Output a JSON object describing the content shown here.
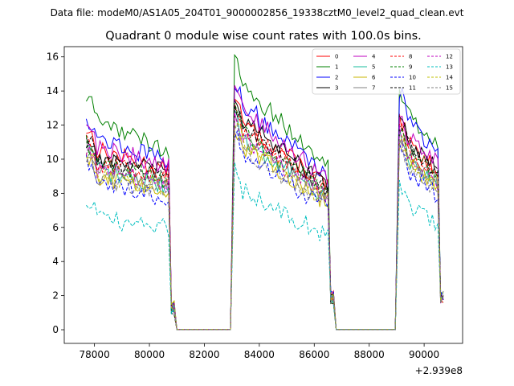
{
  "figure": {
    "suptitle": "Data file: modeM0/AS1A05_204T01_9000002856_19338cztM0_level2_quad_clean.evt",
    "offset_label": "+2.939e8"
  },
  "chart_data": {
    "type": "line",
    "title": "Quadrant 0 module wise count rates with 100.0s bins.",
    "xlabel": "",
    "ylabel": "",
    "xlim": [
      76900,
      91400
    ],
    "ylim": [
      -0.8,
      16.6
    ],
    "x_offset": 293900000,
    "x_ticks": [
      78000,
      80000,
      82000,
      84000,
      86000,
      88000,
      90000
    ],
    "x_tick_labels": [
      "78000",
      "80000",
      "82000",
      "84000",
      "86000",
      "88000",
      "90000"
    ],
    "y_ticks": [
      0,
      2,
      4,
      6,
      8,
      10,
      12,
      14,
      16
    ],
    "y_tick_labels": [
      "0",
      "2",
      "4",
      "6",
      "8",
      "10",
      "12",
      "14",
      "16"
    ],
    "grid": false,
    "legend_position": "top-right",
    "legend_columns": 4,
    "bin_width": 100,
    "segments": [
      {
        "start": 77700,
        "end": 80900,
        "peak_end": 78000
      },
      {
        "start": 83100,
        "end": 86700,
        "peak_end": 83300
      },
      {
        "start": 89100,
        "end": 90700,
        "peak_end": 89300
      }
    ],
    "gaps": [
      [
        81000,
        82950
      ],
      [
        86800,
        88950
      ]
    ],
    "series": [
      {
        "name": "0",
        "color": "#ff0000",
        "style": "solid",
        "base": 10.0,
        "peaks": [
          11.8,
          13.4,
          12.2
        ]
      },
      {
        "name": "1",
        "color": "#008000",
        "style": "solid",
        "base": 11.2,
        "peaks": [
          13.6,
          15.7,
          14.1
        ]
      },
      {
        "name": "2",
        "color": "#0000ff",
        "style": "solid",
        "base": 10.6,
        "peaks": [
          12.5,
          14.6,
          14.0
        ]
      },
      {
        "name": "3",
        "color": "#000000",
        "style": "solid",
        "base": 9.9,
        "peaks": [
          11.3,
          13.6,
          12.3
        ]
      },
      {
        "name": "4",
        "color": "#bf00bf",
        "style": "solid",
        "base": 10.3,
        "peaks": [
          12.0,
          14.2,
          12.7
        ]
      },
      {
        "name": "5",
        "color": "#1abc9c",
        "style": "solid",
        "base": 9.0,
        "peaks": [
          10.6,
          12.5,
          11.4
        ]
      },
      {
        "name": "6",
        "color": "#c8b400",
        "style": "solid",
        "base": 8.8,
        "peaks": [
          10.2,
          12.0,
          11.0
        ]
      },
      {
        "name": "7",
        "color": "#808080",
        "style": "solid",
        "base": 9.2,
        "peaks": [
          10.8,
          12.8,
          11.6
        ]
      },
      {
        "name": "8",
        "color": "#ff0000",
        "style": "dashed",
        "base": 9.5,
        "peaks": [
          11.1,
          13.1,
          11.9
        ]
      },
      {
        "name": "9",
        "color": "#008000",
        "style": "dashed",
        "base": 9.4,
        "peaks": [
          11.0,
          12.9,
          11.8
        ]
      },
      {
        "name": "10",
        "color": "#0000ff",
        "style": "dashed",
        "base": 8.3,
        "peaks": [
          9.8,
          11.6,
          10.6
        ]
      },
      {
        "name": "11",
        "color": "#000000",
        "style": "dashed",
        "base": 9.7,
        "peaks": [
          11.2,
          13.3,
          12.1
        ]
      },
      {
        "name": "12",
        "color": "#bf00bf",
        "style": "dashed",
        "base": 9.1,
        "peaks": [
          10.7,
          12.6,
          11.5
        ]
      },
      {
        "name": "13",
        "color": "#00bfbf",
        "style": "dashed",
        "base": 6.5,
        "peaks": [
          7.7,
          9.4,
          8.7
        ]
      },
      {
        "name": "14",
        "color": "#bfbf00",
        "style": "dashed",
        "base": 8.9,
        "peaks": [
          10.4,
          12.2,
          11.2
        ]
      },
      {
        "name": "15",
        "color": "#808080",
        "style": "dashed",
        "base": 8.6,
        "peaks": [
          10.1,
          11.9,
          10.9
        ]
      }
    ]
  }
}
